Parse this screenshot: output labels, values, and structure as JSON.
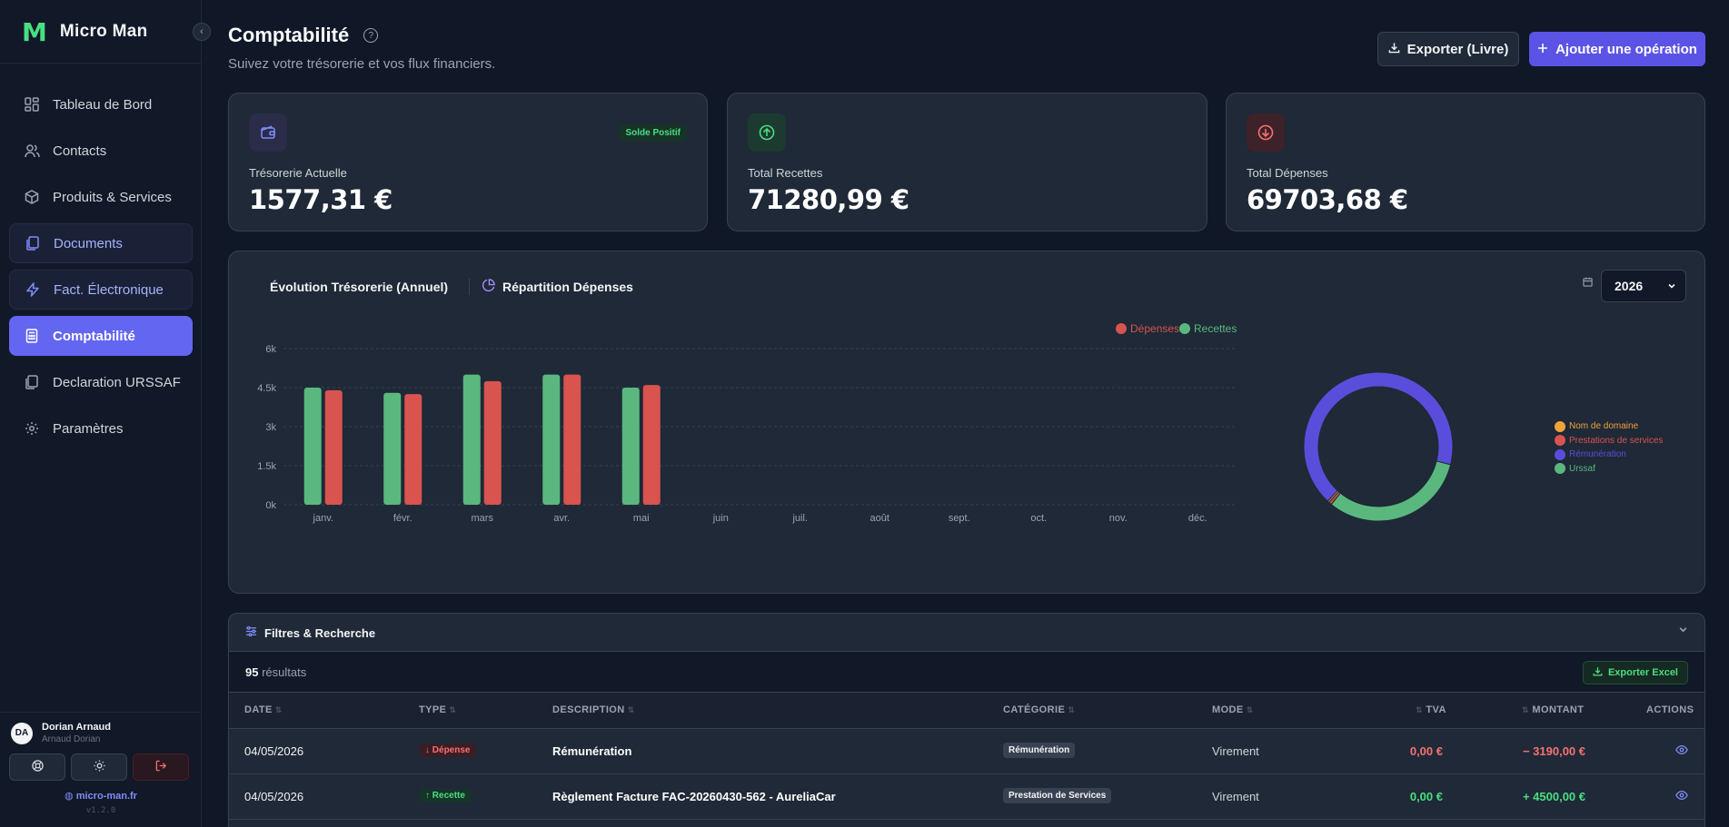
{
  "brand": {
    "logo": "M",
    "name": "Micro Man"
  },
  "sidebar": {
    "items": [
      {
        "label": "Tableau de Bord",
        "icon": "dashboard-icon"
      },
      {
        "label": "Contacts",
        "icon": "users-icon"
      },
      {
        "label": "Produits & Services",
        "icon": "package-icon"
      },
      {
        "label": "Documents",
        "icon": "documents-icon"
      },
      {
        "label": "Fact. Électronique",
        "icon": "lightning-icon"
      },
      {
        "label": "Comptabilité",
        "icon": "calculator-icon"
      },
      {
        "label": "Declaration URSSAF",
        "icon": "copy-icon"
      },
      {
        "label": "Paramètres",
        "icon": "gear-icon"
      }
    ],
    "active_item": "Comptabilité"
  },
  "user": {
    "initials": "DA",
    "name": "Dorian Arnaud",
    "subtitle": "Arnaud Dorian"
  },
  "footer": {
    "site": "micro-man.fr",
    "version": "v1.2.0"
  },
  "header": {
    "title": "Comptabilité",
    "subtitle": "Suivez votre trésorerie et vos flux financiers.",
    "export_label": "Exporter (Livre)",
    "add_label": "Ajouter une opération"
  },
  "stats": {
    "treasury": {
      "label": "Trésorerie Actuelle",
      "value": "1577,31 €",
      "badge": "Solde Positif"
    },
    "income": {
      "label": "Total Recettes",
      "value": "71280,99 €"
    },
    "expenses": {
      "label": "Total Dépenses",
      "value": "69703,68 €"
    }
  },
  "chart_panel": {
    "tab_evolution": "Évolution Trésorerie (Annuel)",
    "tab_repartition": "Répartition Dépenses",
    "year": "2026"
  },
  "chart_data": [
    {
      "type": "bar",
      "title": "Évolution Trésorerie (Annuel)",
      "categories": [
        "janv.",
        "févr.",
        "mars",
        "avr.",
        "mai",
        "juin",
        "juil.",
        "août",
        "sept.",
        "oct.",
        "nov.",
        "déc."
      ],
      "series": [
        {
          "name": "Recettes",
          "color": "#5ab87f",
          "values": [
            4500,
            4300,
            5000,
            5000,
            4500,
            0,
            0,
            0,
            0,
            0,
            0,
            0
          ]
        },
        {
          "name": "Dépenses",
          "color": "#d9534f",
          "values": [
            4400,
            4250,
            4750,
            5000,
            4600,
            0,
            0,
            0,
            0,
            0,
            0,
            0
          ]
        }
      ],
      "yticks": [
        "0k",
        "1.5k",
        "3k",
        "4.5k",
        "6k"
      ],
      "ylim": [
        0,
        6000
      ],
      "grid": true,
      "legend": "top-right"
    },
    {
      "type": "pie",
      "title": "Répartition Dépenses",
      "labels": [
        "Nom de domaine",
        "Prestations de services",
        "Rémunération",
        "Urssaf"
      ],
      "colors": [
        "#f0a23b",
        "#d9534f",
        "#5b4ddb",
        "#5ab87f"
      ],
      "values": [
        0.4,
        0.6,
        67,
        32
      ],
      "legend": "right"
    }
  ],
  "filters": {
    "title": "Filtres & Recherche"
  },
  "results": {
    "count": "95",
    "label": "résultats",
    "export_excel": "Exporter Excel"
  },
  "table": {
    "headers": [
      "DATE",
      "TYPE",
      "DESCRIPTION",
      "CATÉGORIE",
      "MODE",
      "TVA",
      "MONTANT",
      "ACTIONS"
    ],
    "rows": [
      {
        "date": "04/05/2026",
        "type": "Dépense",
        "type_arrow": "↓",
        "description": "Rémunération",
        "category": "Rémunération",
        "mode": "Virement",
        "tva": "0,00 €",
        "amount": "− 3190,00 €"
      },
      {
        "date": "04/05/2026",
        "type": "Recette",
        "type_arrow": "↑",
        "description": "Règlement Facture FAC-20260430-562 - AureliaCar",
        "category": "Prestation de Services",
        "mode": "Virement",
        "tva": "0,00 €",
        "amount": "+ 4500,00 €"
      }
    ]
  }
}
